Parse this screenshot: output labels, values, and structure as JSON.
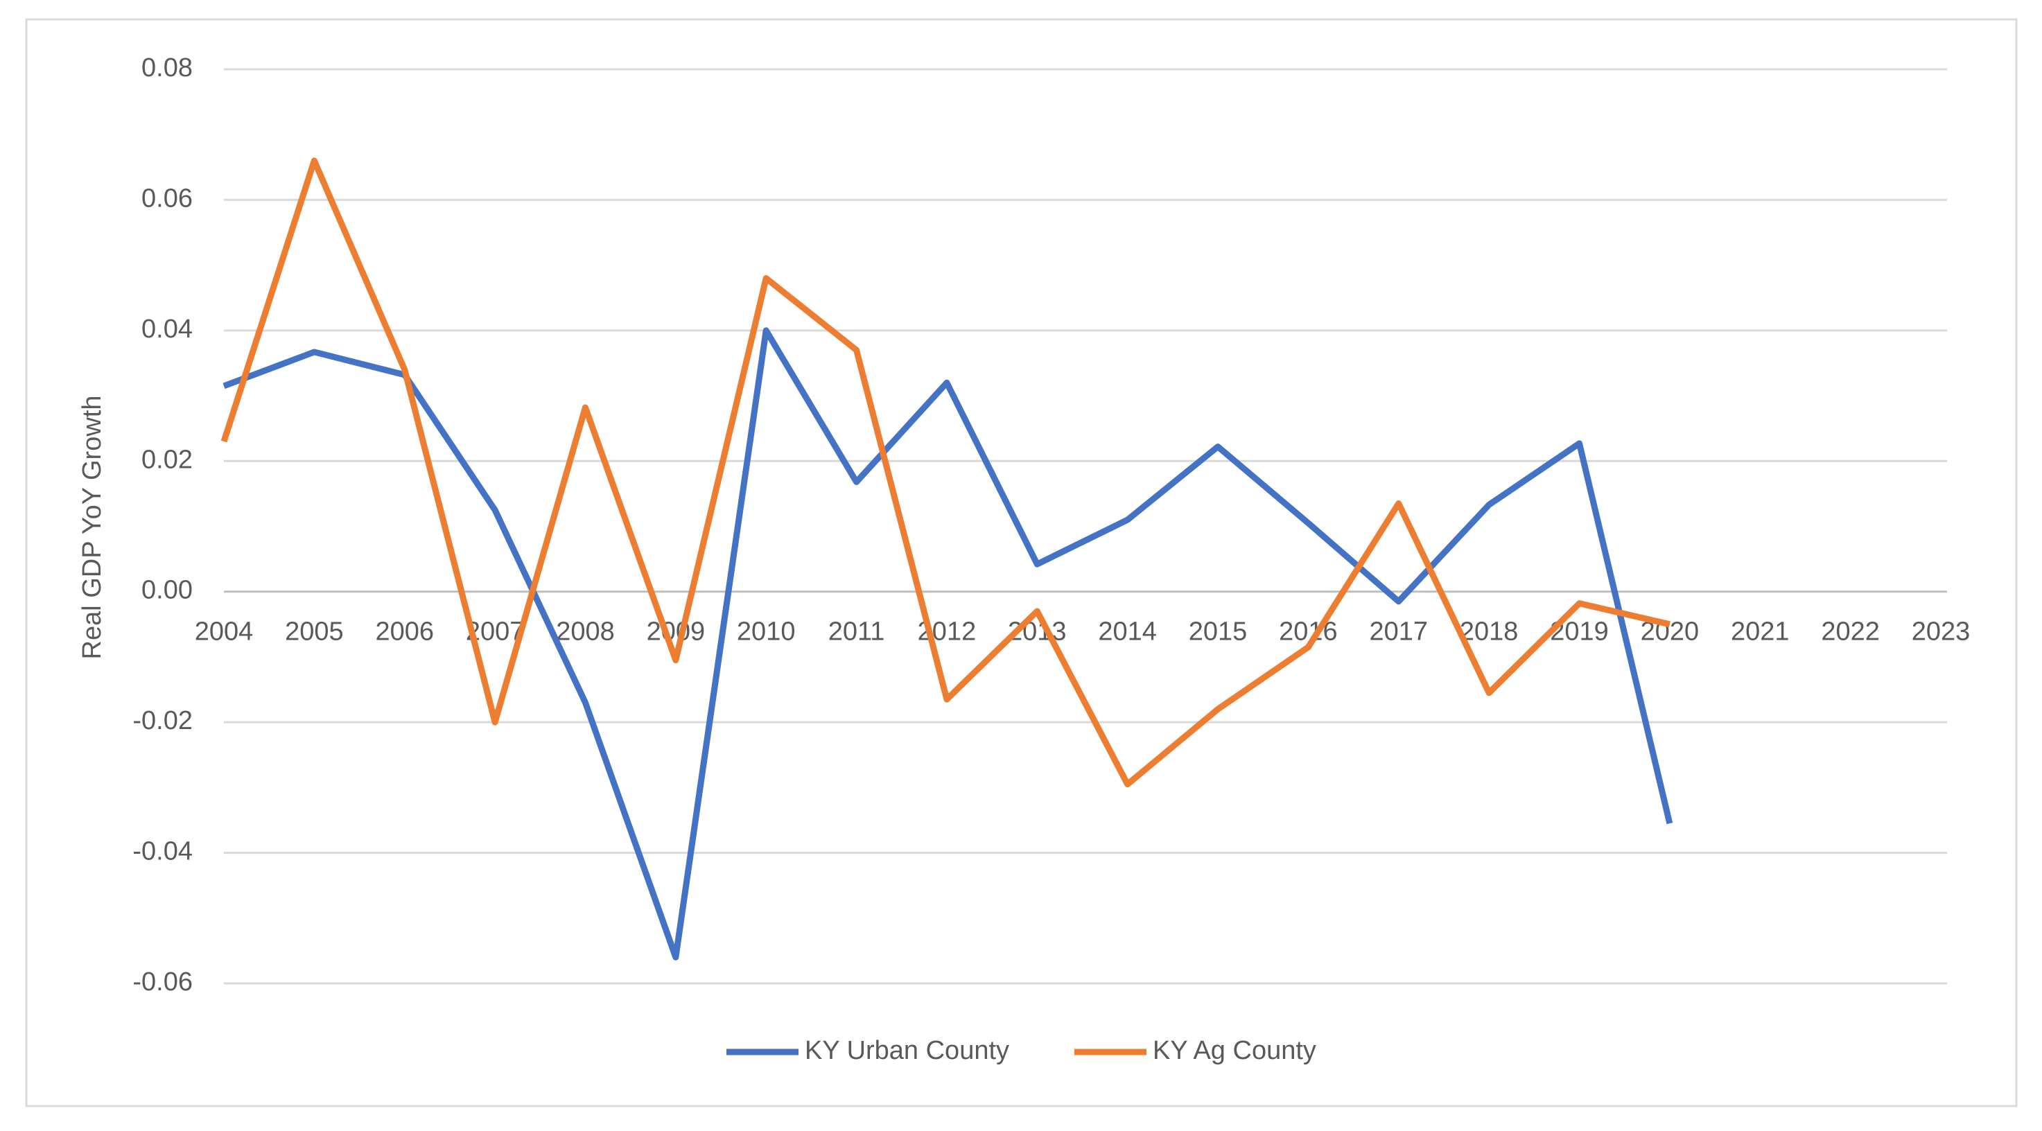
{
  "chart_data": {
    "type": "line",
    "y_label": "Real GDP YoY Growth",
    "categories": [
      "2004",
      "2005",
      "2006",
      "2007",
      "2008",
      "2009",
      "2010",
      "2011",
      "2012",
      "2013",
      "2014",
      "2015",
      "2016",
      "2017",
      "2018",
      "2019",
      "2020",
      "2021",
      "2022",
      "2023"
    ],
    "series": [
      {
        "name": "KY Urban County",
        "color": "#4472c4",
        "values": [
          0.0315,
          0.0367,
          0.0332,
          0.0125,
          -0.017,
          -0.056,
          0.04,
          0.0168,
          0.032,
          0.0042,
          0.011,
          0.0222,
          0.0105,
          -0.0015,
          0.0133,
          0.0227,
          -0.0355,
          null,
          null,
          null
        ]
      },
      {
        "name": "KY Ag County",
        "color": "#ed7d31",
        "values": [
          0.023,
          0.066,
          0.034,
          -0.02,
          0.0282,
          -0.0105,
          0.048,
          0.037,
          -0.0165,
          -0.003,
          -0.0295,
          -0.018,
          -0.0085,
          0.0135,
          -0.0155,
          -0.0018,
          -0.005,
          null,
          null,
          null
        ]
      }
    ],
    "ylim": [
      -0.06,
      0.08
    ],
    "yticks": [
      -0.06,
      -0.04,
      -0.02,
      {
        "value": 0,
        "label": "0.00"
      },
      0.02,
      0.04,
      0.06,
      0.08
    ],
    "grid": true,
    "legend": "bottom"
  }
}
